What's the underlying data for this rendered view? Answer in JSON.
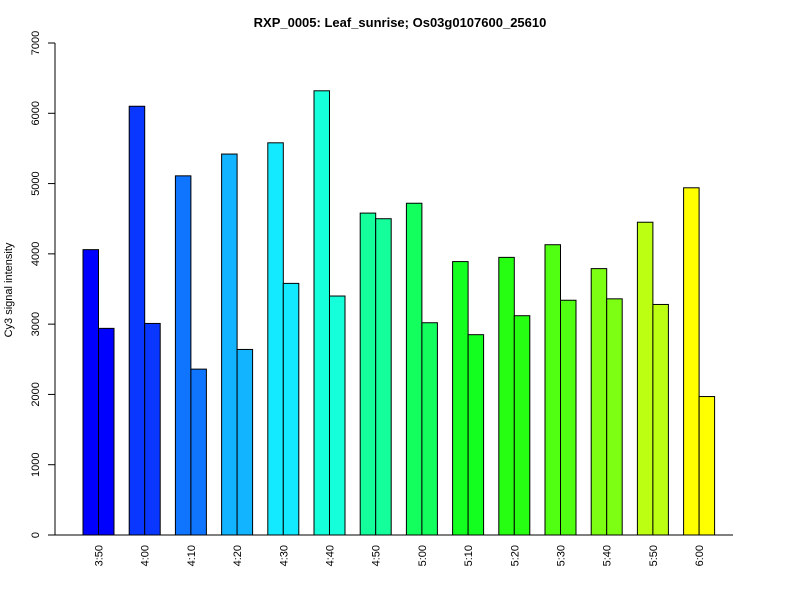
{
  "chart_data": {
    "type": "bar",
    "title": "RXP_0005: Leaf_sunrise; Os03g0107600_25610",
    "xlabel": "",
    "ylabel": "Cy3 signal intensity",
    "ylim": [
      0,
      7000
    ],
    "yticks": [
      0,
      1000,
      2000,
      3000,
      4000,
      5000,
      6000,
      7000
    ],
    "grid": false,
    "categories": [
      "3:50",
      "4:00",
      "4:10",
      "4:20",
      "4:30",
      "4:40",
      "4:50",
      "5:00",
      "5:10",
      "5:20",
      "5:30",
      "5:40",
      "5:50",
      "6:00"
    ],
    "colors": [
      "#0000FF",
      "#0A37FF",
      "#0F75FF",
      "#12B3FF",
      "#14EAFF",
      "#15FFDA",
      "#14FF9C",
      "#13FF5D",
      "#13FF20",
      "#26FF12",
      "#51FF12",
      "#7CFF12",
      "#BCFF13",
      "#FFFF00"
    ],
    "series": [
      {
        "values": [
          4060,
          6100,
          5110,
          5420,
          5580,
          6320,
          4580,
          4720,
          3890,
          3950,
          4130,
          3790,
          4450,
          4940
        ]
      },
      {
        "values": [
          2940,
          3010,
          2360,
          2640,
          3580,
          3400,
          4500,
          3020,
          2850,
          3120,
          3340,
          3360,
          3280,
          1970
        ]
      }
    ]
  }
}
